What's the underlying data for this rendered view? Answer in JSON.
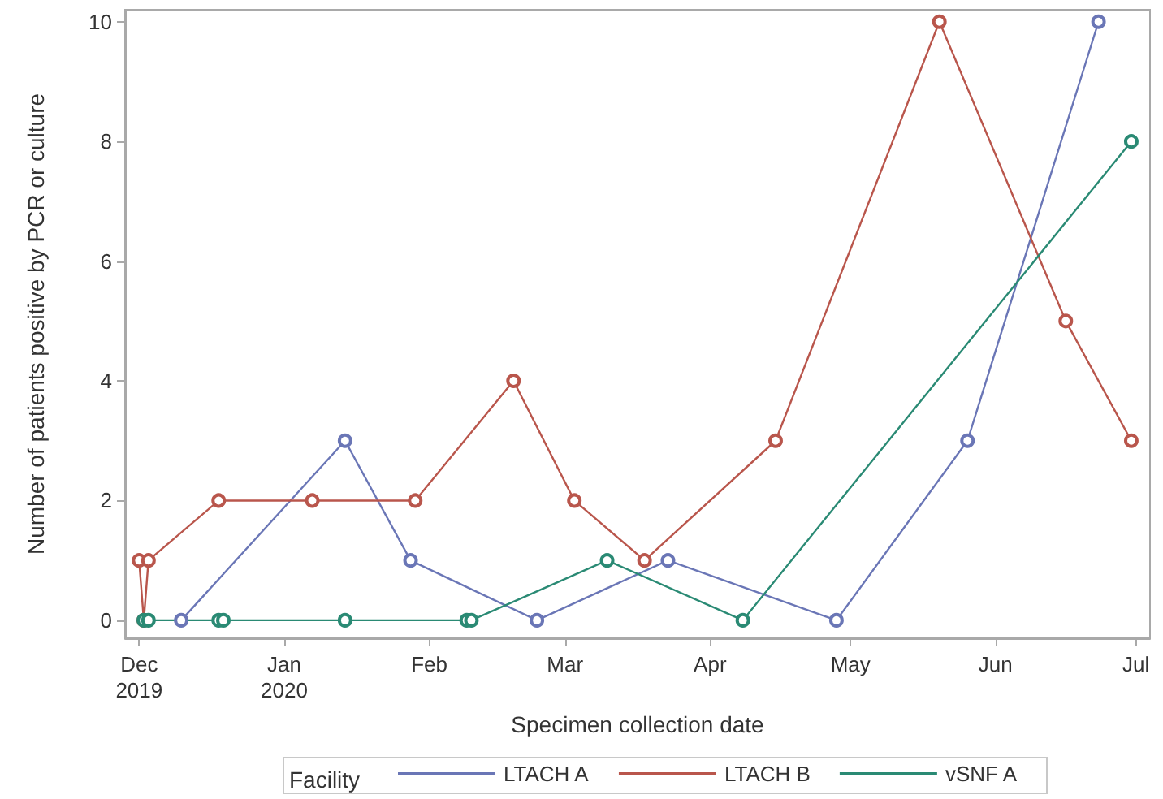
{
  "chart_data": {
    "type": "line",
    "xlabel": "Specimen collection date",
    "ylabel": "Number of patients positive by PCR or culture",
    "legend_title": "Facility",
    "xlim": [
      "2019-11-28",
      "2020-07-04"
    ],
    "xticks": [
      {
        "value": "2019-12-01",
        "label": "Dec\n2019"
      },
      {
        "value": "2020-01-01",
        "label": "Jan\n2020"
      },
      {
        "value": "2020-02-01",
        "label": "Feb"
      },
      {
        "value": "2020-03-01",
        "label": "Mar"
      },
      {
        "value": "2020-04-01",
        "label": "Apr"
      },
      {
        "value": "2020-05-01",
        "label": "May"
      },
      {
        "value": "2020-06-01",
        "label": "Jun"
      },
      {
        "value": "2020-07-01",
        "label": "Jul"
      }
    ],
    "ylim": [
      -0.3,
      10.2
    ],
    "yticks": [
      0,
      2,
      4,
      6,
      8,
      10
    ],
    "grid": false,
    "legend": "bottom",
    "marker": "circle",
    "line_style": "solid",
    "series": [
      {
        "name": "LTACH A",
        "color": "#6a76b6",
        "x": [
          "2019-12-10",
          "2020-01-14",
          "2020-01-28",
          "2020-02-24",
          "2020-03-23",
          "2020-04-28",
          "2020-05-26",
          "2020-06-23"
        ],
        "values": [
          0,
          3,
          1,
          0,
          1,
          0,
          3,
          10
        ]
      },
      {
        "name": "LTACH B",
        "color": "#b9564c",
        "x": [
          "2019-12-01",
          "2019-12-02",
          "2019-12-03",
          "2019-12-18",
          "2020-01-07",
          "2020-01-29",
          "2020-02-19",
          "2020-03-03",
          "2020-03-18",
          "2020-04-15",
          "2020-05-20",
          "2020-06-16",
          "2020-06-30"
        ],
        "values": [
          1,
          0,
          1,
          2,
          2,
          2,
          4,
          2,
          1,
          3,
          10,
          5,
          3
        ]
      },
      {
        "name": "vSNF A",
        "color": "#2a8a74",
        "x": [
          "2019-12-02",
          "2019-12-03",
          "2019-12-18",
          "2019-12-19",
          "2020-01-14",
          "2020-02-09",
          "2020-02-10",
          "2020-03-10",
          "2020-04-08",
          "2020-06-30"
        ],
        "values": [
          0,
          0,
          0,
          0,
          0,
          0,
          0,
          1,
          0,
          8
        ]
      }
    ]
  }
}
